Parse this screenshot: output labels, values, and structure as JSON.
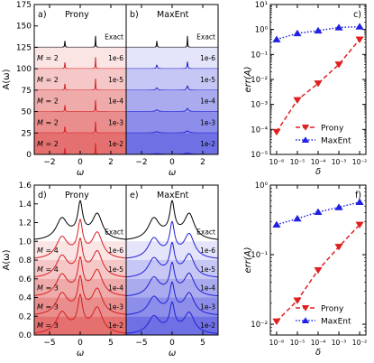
{
  "chart_data": [
    {
      "id": "a",
      "type": "line",
      "panel_label": "a)",
      "title": "Prony",
      "xlabel": "ω",
      "ylabel": "A(ω)",
      "xlim": [
        -3,
        3
      ],
      "ylim": [
        0,
        175
      ],
      "xticks": [
        -2,
        0,
        2
      ],
      "xtick_labels": [
        "−2",
        "0",
        "2"
      ],
      "yticks": [
        0,
        25,
        50,
        75,
        100,
        125,
        150,
        175
      ],
      "ytick_labels": [
        "0",
        "25",
        "50",
        "75",
        "100",
        "125",
        "150",
        "175"
      ],
      "spectrum": "sharp",
      "colors": [
        "#000000",
        "#d62020"
      ],
      "series": [
        {
          "name": "Exact",
          "label_left": "",
          "offset": 125,
          "peak": 13
        },
        {
          "name": "1e-6",
          "label_left": "M = 2",
          "offset": 100,
          "peak": 13
        },
        {
          "name": "1e-5",
          "label_left": "M = 2",
          "offset": 75,
          "peak": 13
        },
        {
          "name": "1e-4",
          "label_left": "M = 2",
          "offset": 50,
          "peak": 13
        },
        {
          "name": "1e-3",
          "label_left": "M = 2",
          "offset": 25,
          "peak": 13
        },
        {
          "name": "1e-2",
          "label_left": "M = 2",
          "offset": 0,
          "peak": 13
        }
      ]
    },
    {
      "id": "b",
      "type": "line",
      "panel_label": "b)",
      "title": "MaxEnt",
      "xlabel": "ω",
      "xlim": [
        -3,
        3
      ],
      "ylim": [
        0,
        175
      ],
      "xticks": [
        -2,
        0,
        2
      ],
      "xtick_labels": [
        "−2",
        "0",
        "2"
      ],
      "spectrum": "sharp",
      "colors": [
        "#000000",
        "#2020d6"
      ],
      "series": [
        {
          "name": "Exact",
          "offset": 125,
          "peak": 13
        },
        {
          "name": "1e-6",
          "offset": 100,
          "peak": 8
        },
        {
          "name": "1e-5",
          "offset": 75,
          "peak": 5
        },
        {
          "name": "1e-4",
          "offset": 50,
          "peak": 3.5
        },
        {
          "name": "1e-3",
          "offset": 25,
          "peak": 2.5
        },
        {
          "name": "1e-2",
          "offset": 0,
          "peak": 1.5
        }
      ]
    },
    {
      "id": "c",
      "type": "line",
      "panel_label": "c)",
      "xlabel": "δ",
      "ylabel": "err(A)",
      "xscale": "log",
      "yscale": "log",
      "xlim": [
        5e-07,
        0.02
      ],
      "ylim": [
        1e-05,
        10
      ],
      "xticks": [
        1e-06,
        1e-05,
        0.0001,
        0.001,
        0.01
      ],
      "xtick_labels": [
        "10⁻⁶",
        "10⁻⁵",
        "10⁻⁴",
        "10⁻³",
        "10⁻²"
      ],
      "yticks": [
        1e-05,
        0.0001,
        0.001,
        0.01,
        0.1,
        1,
        10
      ],
      "ytick_labels": [
        "10⁻⁵",
        "10⁻⁴",
        "10⁻³",
        "10⁻²",
        "10⁻¹",
        "10⁰",
        "10¹"
      ],
      "legend": "bottom-right",
      "x": [
        1e-06,
        1e-05,
        0.0001,
        0.001,
        0.01
      ],
      "series": [
        {
          "name": "Prony",
          "values": [
            8e-05,
            0.0015,
            0.007,
            0.04,
            0.4
          ],
          "color": "#e02020",
          "marker": "triangle-down",
          "dash": "dashed"
        },
        {
          "name": "MaxEnt",
          "values": [
            0.4,
            0.7,
            0.9,
            1.2,
            1.3
          ],
          "color": "#2020e0",
          "marker": "triangle-up",
          "dash": "dotted"
        }
      ]
    },
    {
      "id": "d",
      "type": "line",
      "panel_label": "d)",
      "title": "Prony",
      "xlabel": "ω",
      "ylabel": "A(ω)",
      "xlim": [
        -7.5,
        7.5
      ],
      "ylim": [
        0,
        1.6
      ],
      "xticks": [
        -5,
        0,
        5
      ],
      "xtick_labels": [
        "−5",
        "0",
        "5"
      ],
      "yticks": [
        0,
        0.2,
        0.4,
        0.6,
        0.8,
        1.0,
        1.2,
        1.4,
        1.6
      ],
      "ytick_labels": [
        "0.0",
        "0.2",
        "0.4",
        "0.6",
        "0.8",
        "1.0",
        "1.2",
        "1.4",
        "1.6"
      ],
      "spectrum": "broad",
      "colors": [
        "#000000",
        "#d62020"
      ],
      "series": [
        {
          "name": "Exact",
          "label_left": "",
          "offset": 1.0,
          "peak": 0.38
        },
        {
          "name": "1e-6",
          "label_left": "M = 4",
          "offset": 0.8,
          "peak": 0.38
        },
        {
          "name": "1e-5",
          "label_left": "M = 4",
          "offset": 0.6,
          "peak": 0.38
        },
        {
          "name": "1e-4",
          "label_left": "M = 3",
          "offset": 0.4,
          "peak": 0.38
        },
        {
          "name": "1e-3",
          "label_left": "M = 3",
          "offset": 0.2,
          "peak": 0.38
        },
        {
          "name": "1e-2",
          "label_left": "M = 3",
          "offset": 0.0,
          "peak": 0.38
        }
      ]
    },
    {
      "id": "e",
      "type": "line",
      "panel_label": "e)",
      "title": "MaxEnt",
      "xlabel": "ω",
      "xlim": [
        -7.5,
        7.5
      ],
      "ylim": [
        0,
        1.6
      ],
      "xticks": [
        -5,
        0,
        5
      ],
      "xtick_labels": [
        "−5",
        "0",
        "5"
      ],
      "spectrum": "broad",
      "colors": [
        "#000000",
        "#2020d6"
      ],
      "series": [
        {
          "name": "Exact",
          "offset": 1.0,
          "peak": 0.38
        },
        {
          "name": "1e-6",
          "offset": 0.8,
          "peak": 0.36
        },
        {
          "name": "1e-5",
          "offset": 0.6,
          "peak": 0.34
        },
        {
          "name": "1e-4",
          "offset": 0.4,
          "peak": 0.33
        },
        {
          "name": "1e-3",
          "offset": 0.2,
          "peak": 0.32
        },
        {
          "name": "1e-2",
          "offset": 0.0,
          "peak": 0.31
        }
      ]
    },
    {
      "id": "f",
      "type": "line",
      "panel_label": "f)",
      "xlabel": "δ",
      "ylabel": "err(A)",
      "xscale": "log",
      "yscale": "log",
      "xlim": [
        5e-07,
        0.02
      ],
      "ylim": [
        0.007,
        1
      ],
      "xticks": [
        1e-06,
        1e-05,
        0.0001,
        0.001,
        0.01
      ],
      "xtick_labels": [
        "10⁻⁶",
        "10⁻⁵",
        "10⁻⁴",
        "10⁻³",
        "10⁻²"
      ],
      "yticks": [
        0.01,
        0.1,
        1
      ],
      "ytick_labels": [
        "10⁻²",
        "10⁻¹",
        "10⁰"
      ],
      "legend": "bottom-right",
      "x": [
        1e-06,
        1e-05,
        0.0001,
        0.001,
        0.01
      ],
      "series": [
        {
          "name": "Prony",
          "values": [
            0.011,
            0.022,
            0.06,
            0.13,
            0.27
          ],
          "color": "#e02020",
          "marker": "triangle-down",
          "dash": "dashed"
        },
        {
          "name": "MaxEnt",
          "values": [
            0.27,
            0.33,
            0.41,
            0.48,
            0.57
          ],
          "color": "#2020e0",
          "marker": "triangle-up",
          "dash": "dotted"
        }
      ]
    }
  ]
}
